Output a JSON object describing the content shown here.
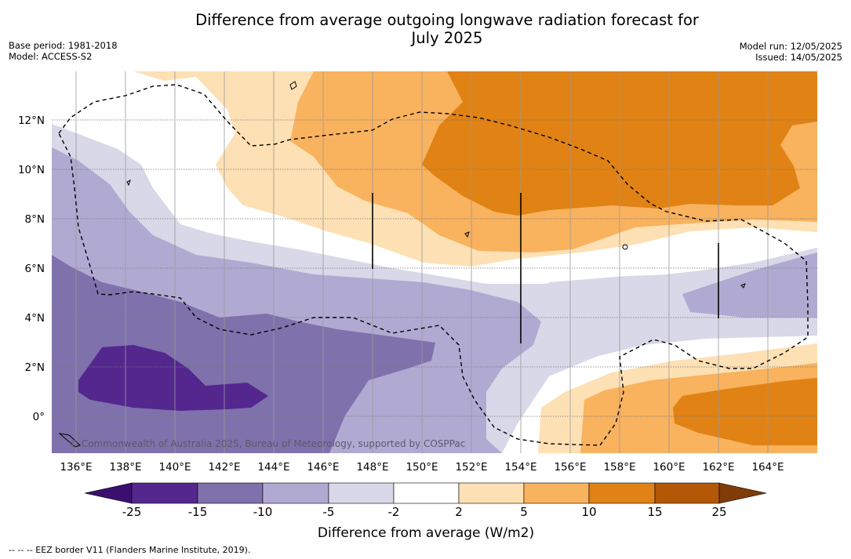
{
  "title": {
    "line1": "Difference from average outgoing longwave radiation forecast for",
    "line2": "July 2025"
  },
  "meta": {
    "base_period": "Base period: 1981-2018",
    "model": "Model: ACCESS-S2",
    "model_run": "Model run: 12/05/2025",
    "issued": "Issued: 14/05/2025"
  },
  "map": {
    "lat_labels": [
      "12°N",
      "10°N",
      "8°N",
      "6°N",
      "4°N",
      "2°N",
      "0°"
    ],
    "lon_labels": [
      "136°E",
      "138°E",
      "140°E",
      "142°E",
      "144°E",
      "146°E",
      "148°E",
      "150°E",
      "152°E",
      "154°E",
      "156°E",
      "158°E",
      "160°E",
      "162°E",
      "164°E"
    ],
    "copyright": "© Commonwealth of Australia 2025, Bureau of Meteorology, supported by COSPPac"
  },
  "colorbar": {
    "title": "Difference from average (W/m2)",
    "labels": [
      "-25",
      "-15",
      "-10",
      "-5",
      "-2",
      "2",
      "5",
      "10",
      "15",
      "25"
    ],
    "colors": {
      "under": "#3b0f70",
      "c1": "#54278f",
      "c2": "#7f71ab",
      "c3": "#b0aad2",
      "c4": "#d8d8e8",
      "c5": "#ffffff",
      "c6": "#fde0b4",
      "c7": "#f9b25e",
      "c8": "#e08214",
      "c9": "#b35806",
      "over": "#7f3b08"
    }
  },
  "footnote": "--  --  -- EEZ border V11 (Flanders Marine Institute, 2019)."
}
